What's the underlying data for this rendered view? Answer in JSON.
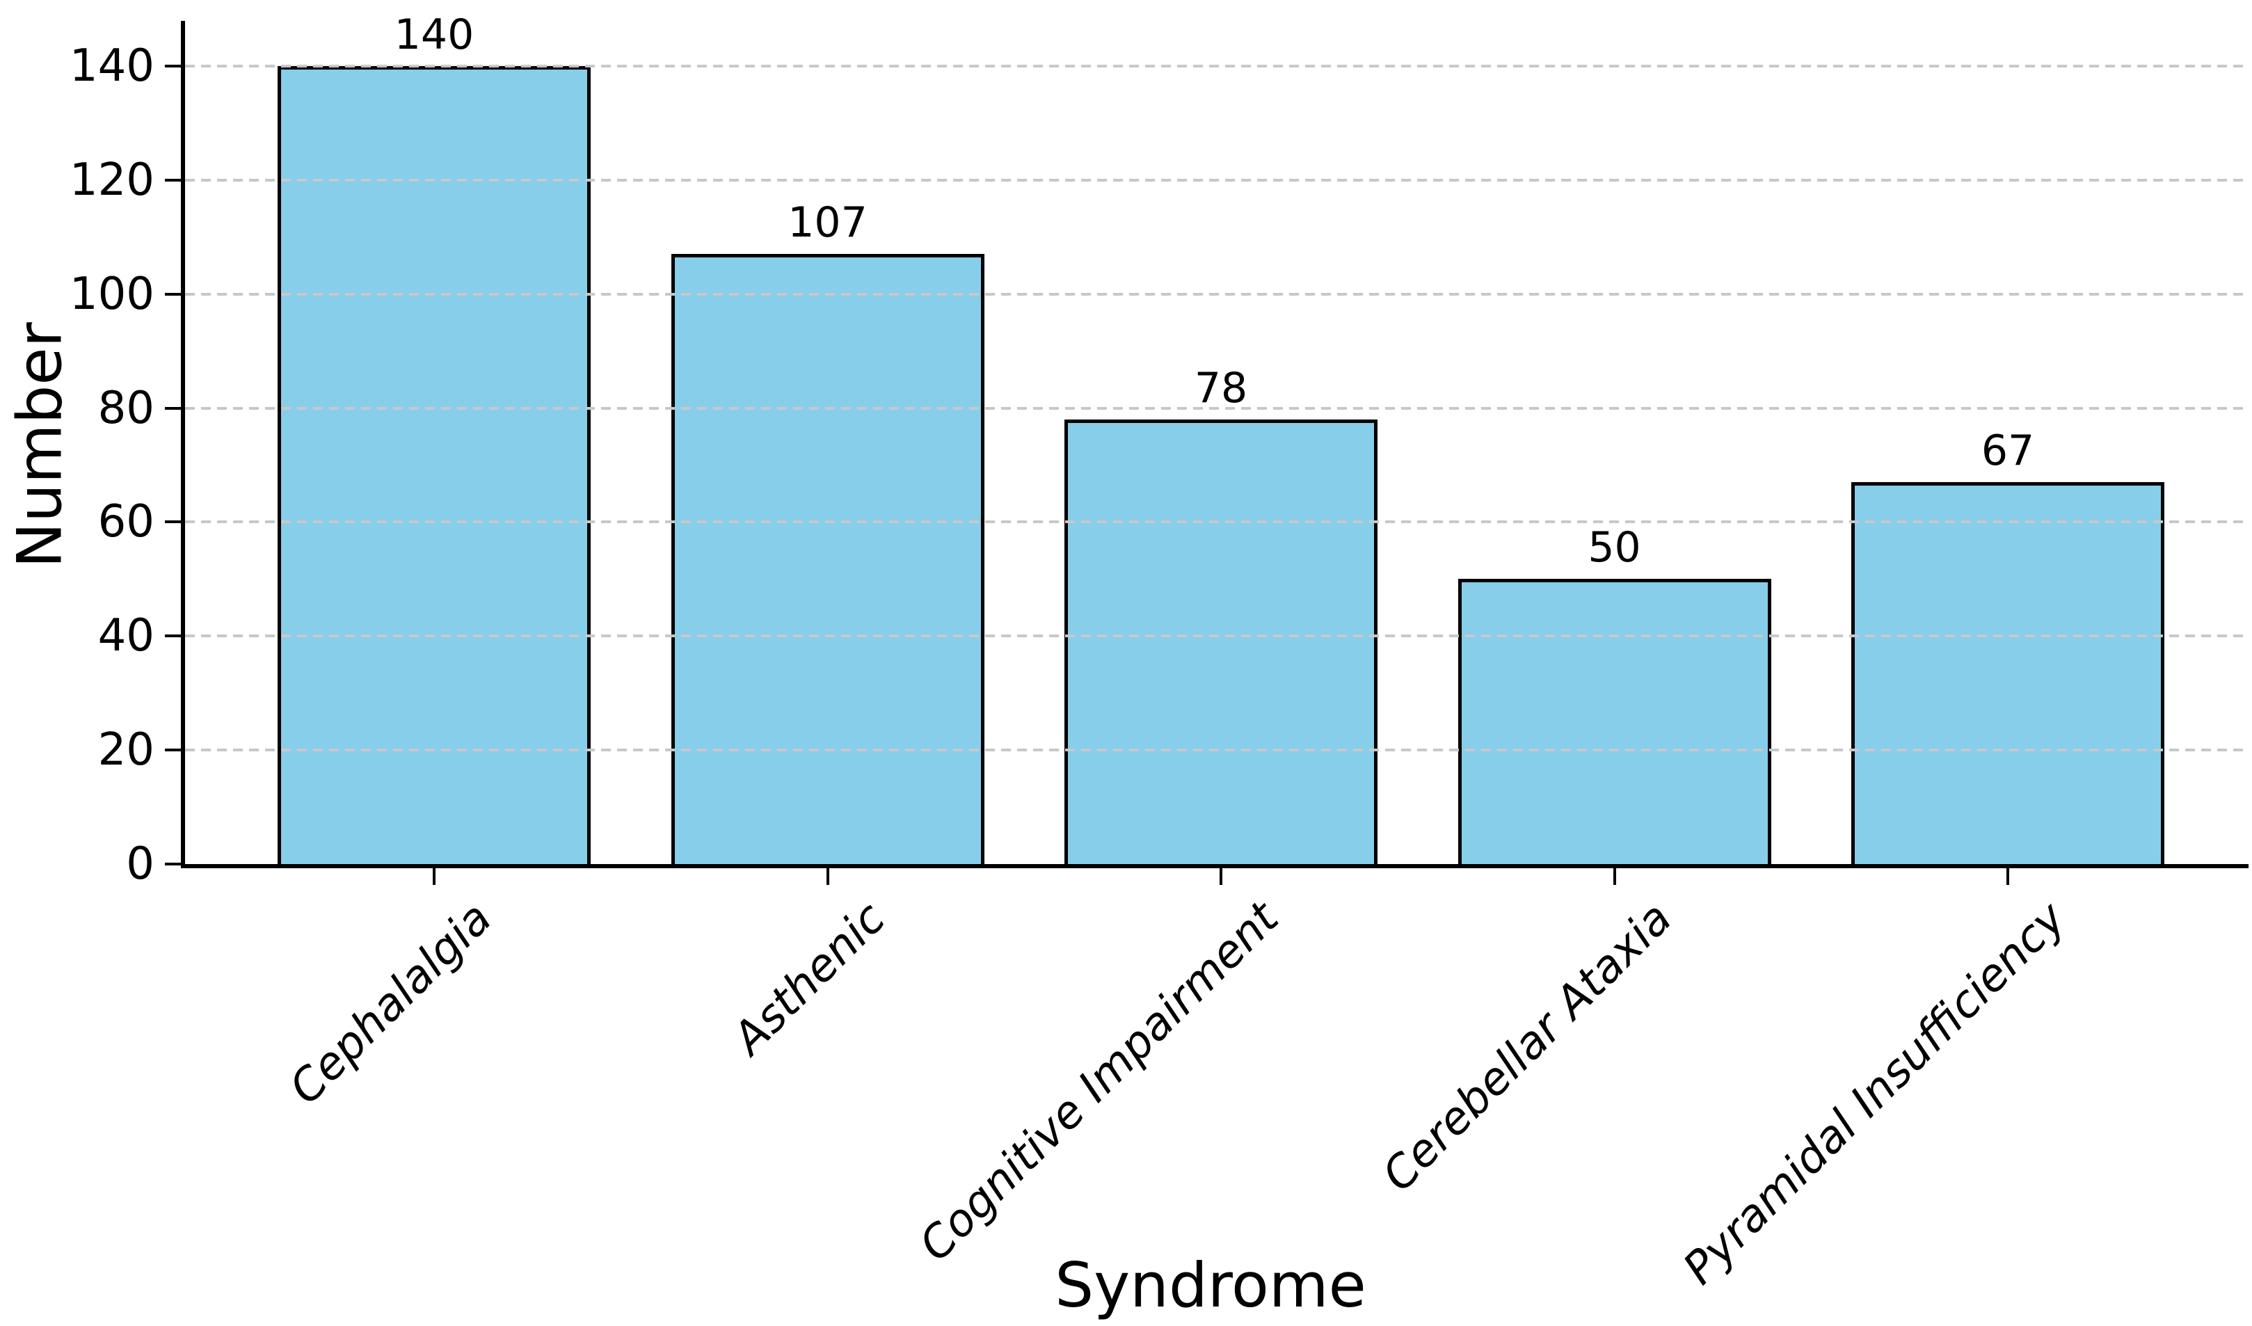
{
  "chart_data": {
    "type": "bar",
    "title": "",
    "categories": [
      "Cephalalgia",
      "Asthenic",
      "Cognitive Impairment",
      "Cerebellar Ataxia",
      "Pyramidal Insufficiency"
    ],
    "values": [
      140,
      107,
      78,
      50,
      67
    ],
    "bar_labels": [
      "140",
      "107",
      "78",
      "50",
      "67"
    ],
    "xlabel": "Syndrome",
    "ylabel": "Number",
    "yticks": [
      0,
      20,
      40,
      60,
      80,
      100,
      120,
      140
    ],
    "ylim": [
      0,
      148
    ],
    "grid": "horizontal dashed, drawn over bars",
    "legend": "none",
    "x_tick_label_style": "italic, rotated 45deg, right-anchored",
    "colors": {
      "bar_fill": "#87CEEB",
      "bar_edge": "#000000",
      "grid": "#c8c8c8",
      "text": "#000000",
      "background": "#ffffff"
    }
  }
}
